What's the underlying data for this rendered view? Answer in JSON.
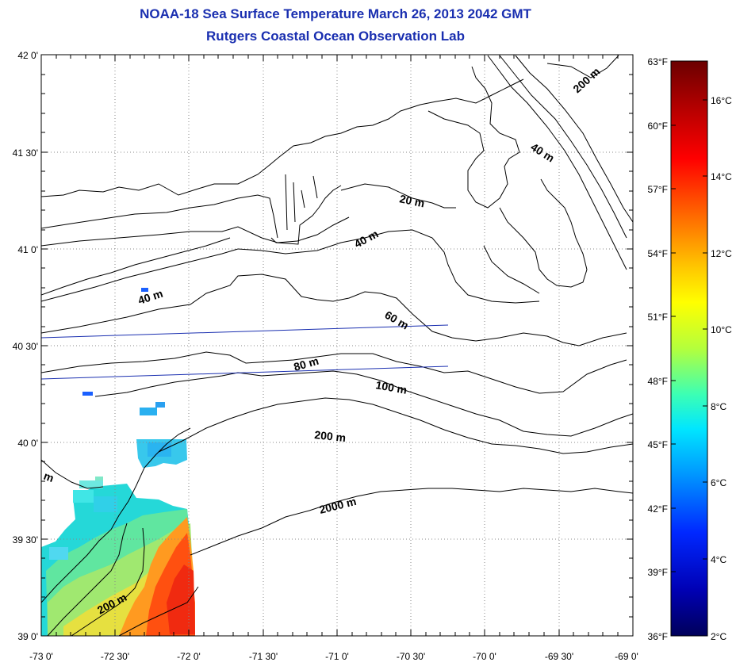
{
  "title": {
    "line1": "NOAA-18 Sea Surface Temperature March 26, 2013 2042 GMT",
    "line2": "Rutgers Coastal Ocean Observation Lab"
  },
  "lat_labels": [
    "42 0'",
    "41 30'",
    "41 0'",
    "40 30'",
    "40 0'",
    "39 30'",
    "39 0'"
  ],
  "lon_labels": [
    "-73 0'",
    "-72 30'",
    "-72 0'",
    "-71 30'",
    "-71 0'",
    "-70 30'",
    "-70 0'",
    "-69 30'",
    "-69 0'"
  ],
  "contour_labels": [
    "200 m",
    "40 m",
    "20 m",
    "40 m",
    "40 m",
    "60 m",
    "80 m",
    "100 m",
    "200 m",
    "2000 m",
    "200 m",
    "m"
  ],
  "colorbar": {
    "fahrenheit": [
      "63°F",
      "60°F",
      "57°F",
      "54°F",
      "51°F",
      "48°F",
      "45°F",
      "42°F",
      "39°F",
      "36°F"
    ],
    "celsius": [
      "16°C",
      "14°C",
      "12°C",
      "10°C",
      "8°C",
      "6°C",
      "4°C",
      "2°C"
    ],
    "colors": [
      "#6b0000",
      "#b30000",
      "#ff0000",
      "#ff6a00",
      "#ffc800",
      "#ffff00",
      "#b4ff3c",
      "#3cffb4",
      "#00e6ff",
      "#0096ff",
      "#0028ff",
      "#0000b4",
      "#00005a"
    ]
  }
}
